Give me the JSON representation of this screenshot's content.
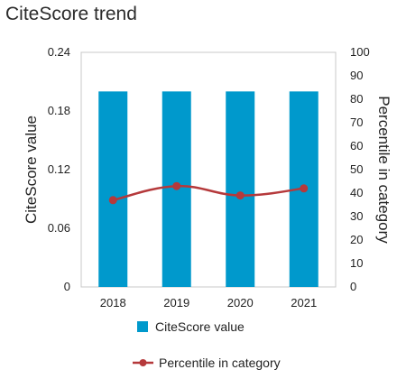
{
  "title": "CiteScore trend",
  "colors": {
    "bar": "#0099cc",
    "line": "#b5393b",
    "frame": "#c8c8c8"
  },
  "chart_data": {
    "type": "bar",
    "categories": [
      "2018",
      "2019",
      "2020",
      "2021"
    ],
    "series": [
      {
        "name": "CiteScore value",
        "type": "bar",
        "axis": "left",
        "values": [
          0.2,
          0.2,
          0.2,
          0.2
        ]
      },
      {
        "name": "Percentile in category",
        "type": "line",
        "axis": "right",
        "values": [
          37,
          43,
          39,
          42
        ]
      }
    ],
    "ylabel": "CiteScore value",
    "y2label": "Percentile in category",
    "ylim": [
      0,
      0.24
    ],
    "y2lim": [
      0,
      100
    ],
    "yticks": [
      "0",
      "0.06",
      "0.12",
      "0.18",
      "0.24"
    ],
    "y2ticks": [
      "0",
      "10",
      "20",
      "30",
      "40",
      "50",
      "60",
      "70",
      "80",
      "90",
      "100"
    ],
    "legend": [
      "CiteScore value",
      "Percentile in category"
    ],
    "legend_position": "bottom",
    "grid": false
  }
}
